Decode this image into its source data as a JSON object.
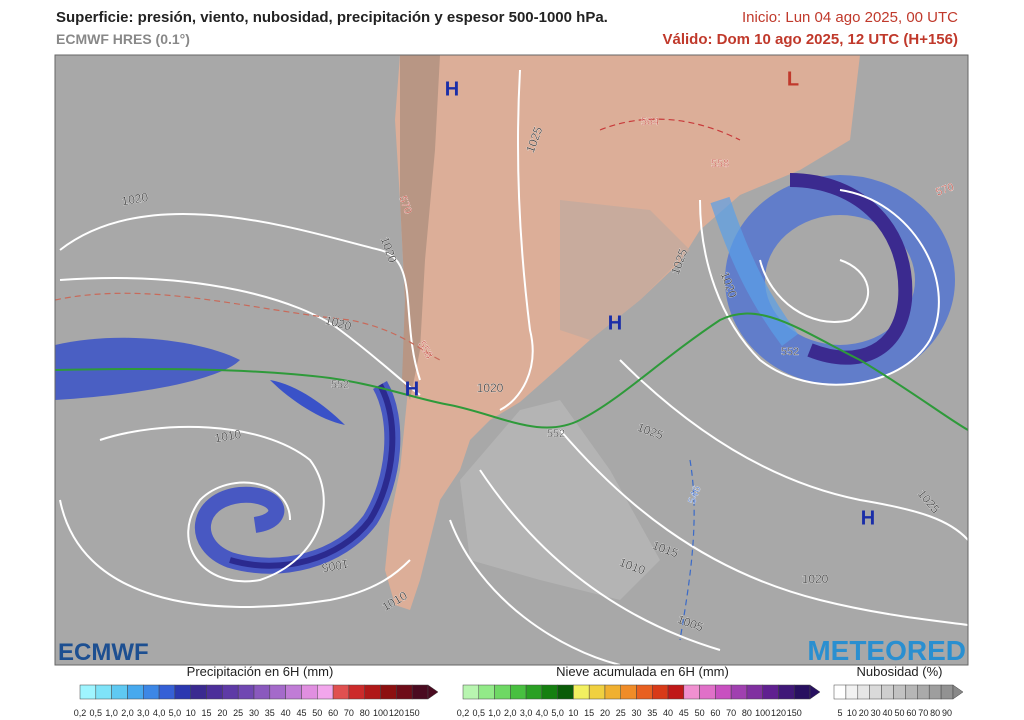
{
  "header": {
    "title": "Superficie: presión, viento, nubosidad, precipitación y espesor 500-1000 hPa.",
    "model": "ECMWF HRES (0.1°)",
    "init": "Inicio: Lun 04 ago 2025, 00 UTC",
    "valid": "Válido: Dom 10 ago 2025, 12 UTC (H+156)"
  },
  "map": {
    "labels": [
      "H",
      "L",
      "1025",
      "564",
      "558",
      "570",
      "1020",
      "570",
      "1020",
      "1025",
      "1020",
      "H",
      "1020",
      "558",
      "552",
      "552",
      "H",
      "1020",
      "552",
      "1025",
      "1010",
      "546",
      "1025",
      "H",
      "1015",
      "1005",
      "1010",
      "1020",
      "1010",
      "1005"
    ]
  },
  "logos": {
    "left": "ECMWF",
    "right": "METEORED"
  },
  "legends": [
    {
      "title": "Precipitación en 6H (mm)",
      "ticks": [
        "0,2",
        "0,5",
        "1,0",
        "2,0",
        "3,0",
        "4,0",
        "5,0",
        "10",
        "15",
        "20",
        "25",
        "30",
        "35",
        "40",
        "45",
        "50",
        "60",
        "70",
        "80",
        "100",
        "120",
        "150"
      ]
    },
    {
      "title": "Nieve acumulada en 6H (mm)",
      "ticks": [
        "0,2",
        "0,5",
        "1,0",
        "2,0",
        "3,0",
        "4,0",
        "5,0",
        "10",
        "15",
        "20",
        "25",
        "30",
        "35",
        "40",
        "45",
        "50",
        "60",
        "70",
        "80",
        "100",
        "120",
        "150"
      ]
    },
    {
      "title": "Nubosidad (%)",
      "ticks": [
        "5",
        "10",
        "20",
        "30",
        "40",
        "50",
        "60",
        "70",
        "80",
        "90"
      ]
    }
  ]
}
